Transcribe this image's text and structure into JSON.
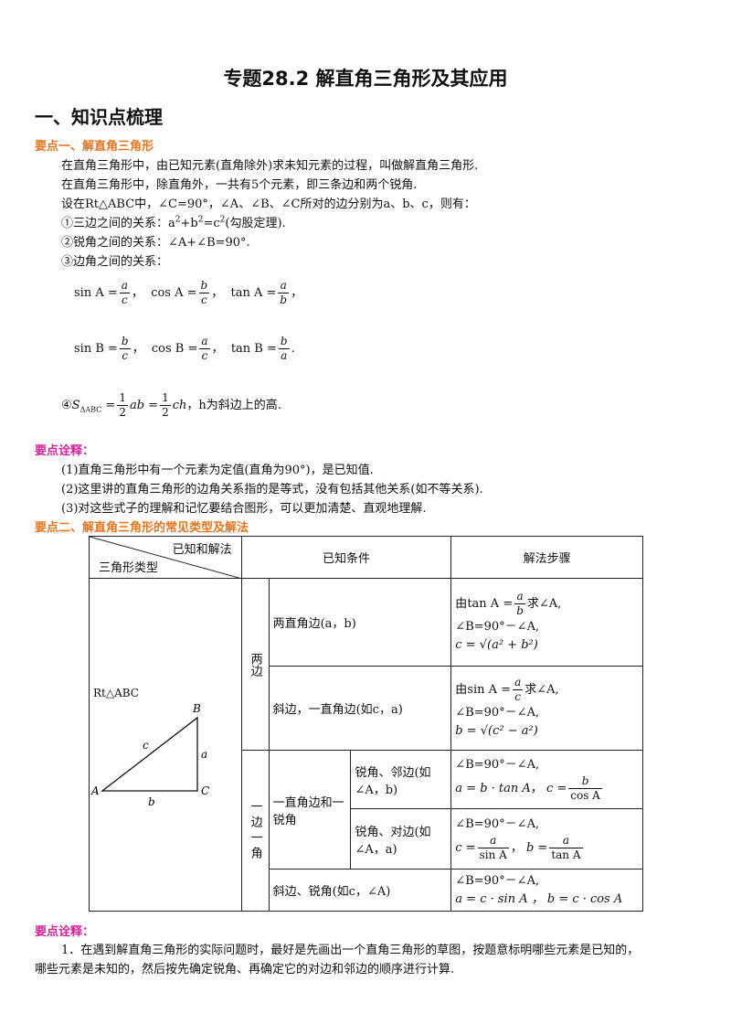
{
  "title": "专题28.2 解直角三角形及其应用",
  "section1": "一、知识点梳理",
  "point1": {
    "heading": "要点一、解直角三角形",
    "line1": "在直角三角形中，由已知元素(直角除外)求未知元素的过程，叫做解直角三角形.",
    "line2": "在直角三角形中，除直角外，一共有5个元素，即三条边和两个锐角.",
    "line3": "设在Rt△ABC中，∠C=90°，∠A、∠B、∠C所对的边分别为a、b、c，则有：",
    "item1_pre": "①三边之间的关系：a",
    "item1_mid1": "+b",
    "item1_mid2": "=c",
    "item1_post": "(勾股定理).",
    "sup2": "2",
    "item2": "②锐角之间的关系：∠A+∠B=90°.",
    "item3": "③边角之间的关系：",
    "sinA": "sin A =",
    "cosA": "cos A =",
    "tanA": "tan A =",
    "sinB": "sin B =",
    "cosB": "cos B =",
    "tanB": "tan B =",
    "var_a": "a",
    "var_b": "b",
    "var_c": "c",
    "sep": "，",
    "end_comma": "，",
    "end_period": ".",
    "item4_pre": "④",
    "item4_S": "S",
    "item4_sub": "ΔABC",
    "item4_eq": "=",
    "one": "1",
    "two": "2",
    "item4_ab": "ab",
    "item4_ch": "ch",
    "item4_post": "，h为斜边上的高."
  },
  "note1": {
    "heading": "要点诠释：",
    "l1": "(1)直角三角形中有一个元素为定值(直角为90°)，是已知值.",
    "l2": "(2)这里讲的直角三角形的边角关系指的是等式，没有包括其他关系(如不等关系).",
    "l3": "(3)对这些式子的理解和记忆要结合图形，可以更加清楚、直观地理解."
  },
  "point2": {
    "heading": "要点二、解直角三角形的常见类型及解法",
    "header_diag_top": "已知和解法",
    "header_diag_bottom": "三角形类型",
    "header_known": "已知条件",
    "header_steps": "解法步骤",
    "tri_label": "Rt△ABC",
    "fig": {
      "A": "A",
      "B": "B",
      "C": "C",
      "a": "a",
      "b": "b",
      "c": "c"
    },
    "group1": "两边",
    "group2": "一边一角",
    "rows": {
      "r1_cond": "两直角边(a，b)",
      "r1_s1_pre": "由",
      "r1_s1_post": "求∠A,",
      "r1_s2": "∠B=90°－∠A,",
      "r1_s3": "c = √(a² + b²)",
      "r2_cond": "斜边，一直角边(如c，a)",
      "r2_s1_pre": "由",
      "r2_s1_post": "求∠A,",
      "r2_s2": "∠B=90°－∠A,",
      "r2_s3": "b = √(c² − a²)",
      "mid_cond": "一直角边和一锐角",
      "r3_cond": "锐角、邻边(如∠A，b)",
      "r3_s1": "∠B=90°－∠A,",
      "r3_s2": "a = b · tan A",
      "r3_s3_c": "c =",
      "r3_s3_den": "cos A",
      "r4_cond": "锐角、对边(如∠A，a)",
      "r4_s1": "∠B=90°－∠A,",
      "r4_c": "c =",
      "r4_cden": "sin A",
      "r4_b": "b =",
      "r4_bden": "tan A",
      "r5_cond": "斜边、锐角(如c，∠A)",
      "r5_s1": "∠B=90°－∠A,",
      "r5_s2": "a = c · sin A ，  b = c · cos A"
    }
  },
  "note2": {
    "heading": "要点诠释：",
    "l1": "1．在遇到解直角三角形的实际问题时，最好是先画出一个直角三角形的草图，按题意标明哪些元素是已知的，",
    "l2": "哪些元素是未知的，然后按先确定锐角、再确定它的对边和邻边的顺序进行计算."
  }
}
